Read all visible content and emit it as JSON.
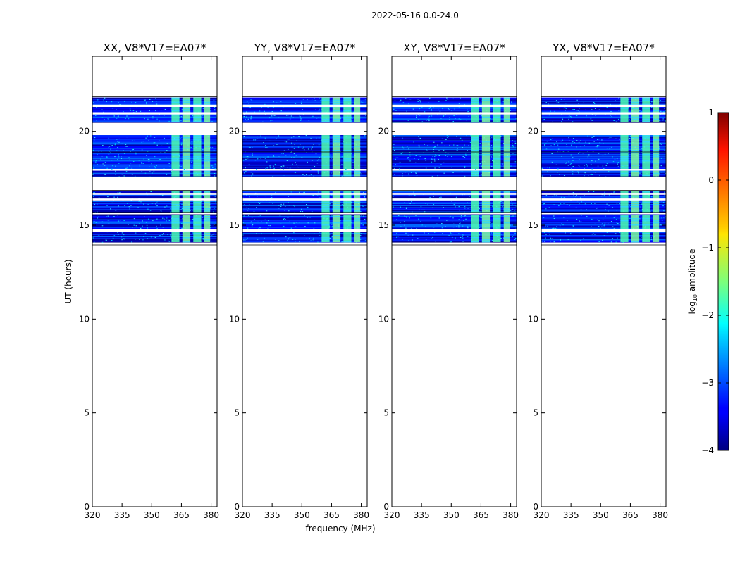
{
  "figure": {
    "suptitle": "2022-05-16 0.0-24.0",
    "ylabel": "UT (hours)",
    "xlabel": "frequency (MHz)"
  },
  "chart_data": {
    "type": "heatmap",
    "xlim": [
      320,
      383
    ],
    "ylim": [
      0,
      24
    ],
    "xticks": [
      320,
      335,
      350,
      365,
      380
    ],
    "yticks": [
      0,
      5,
      10,
      15,
      20
    ],
    "panels": [
      {
        "title": "XX, V8*V17=EA07*"
      },
      {
        "title": "YY, V8*V17=EA07*"
      },
      {
        "title": "XY, V8*V17=EA07*"
      },
      {
        "title": "YX, V8*V17=EA07*"
      }
    ],
    "data_time_ranges_hours": [
      [
        14.1,
        15.6
      ],
      [
        15.6,
        16.8
      ],
      [
        17.6,
        17.9
      ],
      [
        18.0,
        19.8
      ],
      [
        20.5,
        21.8
      ]
    ],
    "gap_time_ranges_hours": [
      [
        14.65,
        14.78
      ],
      [
        15.58,
        15.66
      ],
      [
        16.32,
        16.42
      ],
      [
        16.62,
        16.72
      ],
      [
        20.9,
        21.02
      ],
      [
        21.3,
        21.42
      ]
    ],
    "rfi_frequency_bands_mhz": [
      [
        360,
        364
      ],
      [
        365.5,
        369.5
      ],
      [
        371,
        375
      ],
      [
        376.5,
        379.5
      ]
    ],
    "colorbar": {
      "label": "log10 amplitude",
      "label_base": "log",
      "label_sub": "10",
      "label_rest": " amplitude",
      "min": -4,
      "max": 1,
      "ticks": [
        -4,
        -3,
        -2,
        -1,
        0,
        1
      ],
      "tick_labels": [
        "−4",
        "−3",
        "−2",
        "−1",
        "0",
        "1"
      ],
      "colormap": "jet"
    }
  }
}
